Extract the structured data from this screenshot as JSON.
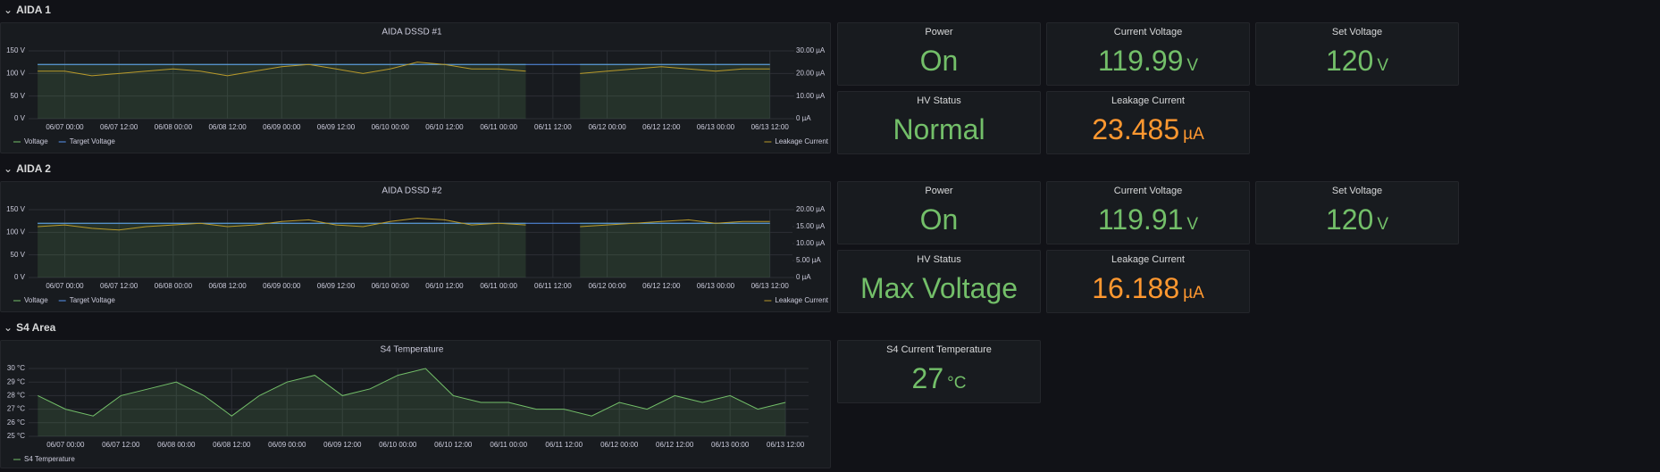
{
  "rows": [
    {
      "title": "AIDA 1",
      "stats": [
        {
          "title": "Power",
          "value": "On",
          "color": "#73bf69"
        },
        {
          "title": "Current Voltage",
          "value": 119.99,
          "unit": "V",
          "color": "#73bf69"
        },
        {
          "title": "Set Voltage",
          "value": 120,
          "unit": "V",
          "color": "#73bf69"
        },
        {
          "title": "HV Status",
          "value": "Normal",
          "color": "#73bf69"
        },
        {
          "title": "Leakage Current",
          "value": 23.485,
          "unit": "µA",
          "color": "#ff9830"
        }
      ]
    },
    {
      "title": "AIDA 2",
      "stats": [
        {
          "title": "Power",
          "value": "On",
          "color": "#73bf69"
        },
        {
          "title": "Current Voltage",
          "value": 119.91,
          "unit": "V",
          "color": "#73bf69"
        },
        {
          "title": "Set Voltage",
          "value": 120,
          "unit": "V",
          "color": "#73bf69"
        },
        {
          "title": "HV Status",
          "value": "Max Voltage",
          "color": "#73bf69"
        },
        {
          "title": "Leakage Current",
          "value": 16.188,
          "unit": "µA",
          "color": "#ff9830"
        }
      ]
    },
    {
      "title": "S4 Area",
      "stats": [
        {
          "title": "S4 Current Temperature",
          "value": 27,
          "unit": "°C",
          "color": "#73bf69"
        }
      ]
    }
  ],
  "chart_data": [
    {
      "type": "line",
      "title": "AIDA DSSD #1",
      "grid": true,
      "x": [
        "06/06 18:00",
        "06/07 00:00",
        "06/07 06:00",
        "06/07 12:00",
        "06/07 18:00",
        "06/08 00:00",
        "06/08 06:00",
        "06/08 12:00",
        "06/08 18:00",
        "06/09 00:00",
        "06/09 06:00",
        "06/09 12:00",
        "06/09 18:00",
        "06/10 00:00",
        "06/10 06:00",
        "06/10 12:00",
        "06/10 18:00",
        "06/11 00:00",
        "06/11 06:00",
        "06/11 12:00",
        "06/11 18:00",
        "06/12 00:00",
        "06/12 06:00",
        "06/12 12:00",
        "06/12 18:00",
        "06/13 00:00",
        "06/13 06:00",
        "06/13 12:00"
      ],
      "xlim": [
        "06/06 16:00",
        "06/13 17:00"
      ],
      "xticks": [
        "06/07 00:00",
        "06/07 12:00",
        "06/08 00:00",
        "06/08 12:00",
        "06/09 00:00",
        "06/09 12:00",
        "06/10 00:00",
        "06/10 12:00",
        "06/11 00:00",
        "06/11 12:00",
        "06/12 00:00",
        "06/12 12:00",
        "06/13 00:00",
        "06/13 12:00"
      ],
      "ylim": [
        0,
        150
      ],
      "yticks": [
        {
          "value": 0,
          "label": "0 V"
        },
        {
          "value": 50,
          "label": "50 V"
        },
        {
          "value": 100,
          "label": "100 V"
        },
        {
          "value": 150,
          "label": "150 V"
        }
      ],
      "y2lim": [
        0,
        30
      ],
      "y2ticks": [
        {
          "value": 0,
          "label": "0 µA"
        },
        {
          "value": 10,
          "label": "10.00 µA"
        },
        {
          "value": 20,
          "label": "20.00 µA"
        },
        {
          "value": 30,
          "label": "30.00 µA"
        }
      ],
      "series": [
        {
          "name": "Voltage",
          "color": "#73bf69",
          "fill": true,
          "values": [
            120,
            120,
            120,
            120,
            120,
            120,
            120,
            120,
            120,
            120,
            120,
            120,
            120,
            120,
            120,
            120,
            120,
            120,
            120,
            null,
            120,
            120,
            120,
            120,
            120,
            120,
            120,
            120
          ]
        },
        {
          "name": "Target Voltage",
          "color": "#5794f2",
          "values": [
            120,
            120,
            120,
            120,
            120,
            120,
            120,
            120,
            120,
            120,
            120,
            120,
            120,
            120,
            120,
            120,
            120,
            120,
            120,
            120,
            120,
            120,
            120,
            120,
            120,
            120,
            120,
            120
          ]
        },
        {
          "name": "Leakage Current",
          "color": "#b99a2a",
          "axis": "y2",
          "values": [
            21,
            21,
            19,
            20,
            21,
            22,
            21,
            19,
            21,
            23,
            24,
            22,
            20,
            22,
            25,
            24,
            22,
            22,
            21,
            null,
            20,
            21,
            22,
            23,
            22,
            21,
            22,
            22
          ]
        }
      ]
    },
    {
      "type": "line",
      "title": "AIDA DSSD #2",
      "grid": true,
      "x": [
        "06/06 18:00",
        "06/07 00:00",
        "06/07 06:00",
        "06/07 12:00",
        "06/07 18:00",
        "06/08 00:00",
        "06/08 06:00",
        "06/08 12:00",
        "06/08 18:00",
        "06/09 00:00",
        "06/09 06:00",
        "06/09 12:00",
        "06/09 18:00",
        "06/10 00:00",
        "06/10 06:00",
        "06/10 12:00",
        "06/10 18:00",
        "06/11 00:00",
        "06/11 06:00",
        "06/11 12:00",
        "06/11 18:00",
        "06/12 00:00",
        "06/12 06:00",
        "06/12 12:00",
        "06/12 18:00",
        "06/13 00:00",
        "06/13 06:00",
        "06/13 12:00"
      ],
      "xlim": [
        "06/06 16:00",
        "06/13 17:00"
      ],
      "xticks": [
        "06/07 00:00",
        "06/07 12:00",
        "06/08 00:00",
        "06/08 12:00",
        "06/09 00:00",
        "06/09 12:00",
        "06/10 00:00",
        "06/10 12:00",
        "06/11 00:00",
        "06/11 12:00",
        "06/12 00:00",
        "06/12 12:00",
        "06/13 00:00",
        "06/13 12:00"
      ],
      "ylim": [
        0,
        150
      ],
      "yticks": [
        {
          "value": 0,
          "label": "0 V"
        },
        {
          "value": 50,
          "label": "50 V"
        },
        {
          "value": 100,
          "label": "100 V"
        },
        {
          "value": 150,
          "label": "150 V"
        }
      ],
      "y2lim": [
        0,
        20
      ],
      "y2ticks": [
        {
          "value": 0,
          "label": "0 µA"
        },
        {
          "value": 5,
          "label": "5.00 µA"
        },
        {
          "value": 10,
          "label": "10.00 µA"
        },
        {
          "value": 15,
          "label": "15.00 µA"
        },
        {
          "value": 20,
          "label": "20.00 µA"
        }
      ],
      "series": [
        {
          "name": "Voltage",
          "color": "#73bf69",
          "fill": true,
          "values": [
            120,
            120,
            120,
            120,
            120,
            120,
            120,
            120,
            120,
            120,
            120,
            120,
            120,
            120,
            120,
            120,
            120,
            120,
            120,
            null,
            120,
            120,
            120,
            120,
            120,
            120,
            120,
            120
          ]
        },
        {
          "name": "Target Voltage",
          "color": "#5794f2",
          "values": [
            120,
            120,
            120,
            120,
            120,
            120,
            120,
            120,
            120,
            120,
            120,
            120,
            120,
            120,
            120,
            120,
            120,
            120,
            120,
            120,
            120,
            120,
            120,
            120,
            120,
            120,
            120,
            120
          ]
        },
        {
          "name": "Leakage Current",
          "color": "#b99a2a",
          "axis": "y2",
          "values": [
            15,
            15.5,
            14.5,
            14,
            15,
            15.5,
            16,
            15,
            15.5,
            16.5,
            17,
            15.5,
            15,
            16.5,
            17.5,
            17,
            15.5,
            16,
            15.5,
            null,
            15,
            15.5,
            16,
            16.5,
            17,
            16,
            16.5,
            16.5
          ]
        }
      ]
    },
    {
      "type": "line",
      "title": "S4 Temperature",
      "grid": true,
      "x": [
        "06/06 18:00",
        "06/07 00:00",
        "06/07 06:00",
        "06/07 12:00",
        "06/07 18:00",
        "06/08 00:00",
        "06/08 06:00",
        "06/08 12:00",
        "06/08 18:00",
        "06/09 00:00",
        "06/09 06:00",
        "06/09 12:00",
        "06/09 18:00",
        "06/10 00:00",
        "06/10 06:00",
        "06/10 12:00",
        "06/10 18:00",
        "06/11 00:00",
        "06/11 06:00",
        "06/11 12:00",
        "06/11 18:00",
        "06/12 00:00",
        "06/12 06:00",
        "06/12 12:00",
        "06/12 18:00",
        "06/13 00:00",
        "06/13 06:00",
        "06/13 12:00"
      ],
      "xlim": [
        "06/06 16:00",
        "06/13 17:00"
      ],
      "xticks": [
        "06/07 00:00",
        "06/07 12:00",
        "06/08 00:00",
        "06/08 12:00",
        "06/09 00:00",
        "06/09 12:00",
        "06/10 00:00",
        "06/10 12:00",
        "06/11 00:00",
        "06/11 12:00",
        "06/12 00:00",
        "06/12 12:00",
        "06/13 00:00",
        "06/13 12:00"
      ],
      "ylim": [
        25,
        30
      ],
      "yticks": [
        {
          "value": 25,
          "label": "25 °C"
        },
        {
          "value": 26,
          "label": "26 °C"
        },
        {
          "value": 27,
          "label": "27 °C"
        },
        {
          "value": 28,
          "label": "28 °C"
        },
        {
          "value": 29,
          "label": "29 °C"
        },
        {
          "value": 30,
          "label": "30 °C"
        }
      ],
      "series": [
        {
          "name": "S4 Temperature",
          "color": "#73bf69",
          "fill": true,
          "values": [
            28,
            27,
            26.5,
            28,
            28.5,
            29,
            28,
            26.5,
            28,
            29,
            29.5,
            28,
            28.5,
            29.5,
            30,
            28,
            27.5,
            27.5,
            27,
            27,
            26.5,
            27.5,
            27,
            28,
            27.5,
            28,
            27,
            27.5
          ]
        }
      ]
    }
  ]
}
